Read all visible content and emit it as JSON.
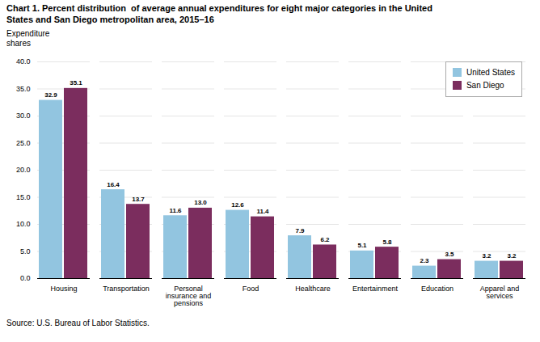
{
  "chart_data": {
    "type": "bar",
    "title": "Chart 1. Percent distribution  of average annual expenditures for eight major categories in the United\nStates and San Diego metropolitan area, 2015–16",
    "y_label": "Expenditure\nshares",
    "source": "Source: U.S. Bureau of Labor Statistics.",
    "categories": [
      "Housing",
      "Transportation",
      "Personal\ninsurance and\npensions",
      "Food",
      "Healthcare",
      "Entertainment",
      "Education",
      "Apparel and\nservices"
    ],
    "series": [
      {
        "name": "United States",
        "color": "#92C5E0",
        "values": [
          32.9,
          16.4,
          11.6,
          12.6,
          7.9,
          5.1,
          2.3,
          3.2
        ],
        "value_labels": [
          "32.9",
          "16.4",
          "11.6",
          "12.6",
          "7.9",
          "5.1",
          "2.3",
          "3.2"
        ]
      },
      {
        "name": "San Diego",
        "color": "#7B2D5E",
        "values": [
          35.1,
          13.7,
          13.0,
          11.4,
          6.2,
          5.8,
          3.5,
          3.2
        ],
        "value_labels": [
          "35.1",
          "13.7",
          "13.0",
          "11.4",
          "6.2",
          "5.8",
          "3.5",
          "3.2"
        ]
      }
    ],
    "ylim": [
      0,
      40
    ],
    "yticks": [
      {
        "value": 0,
        "label": "0.0"
      },
      {
        "value": 5,
        "label": "5.0"
      },
      {
        "value": 10,
        "label": "10.0"
      },
      {
        "value": 15,
        "label": "15.0"
      },
      {
        "value": 20,
        "label": "20.0"
      },
      {
        "value": 25,
        "label": "25.0"
      },
      {
        "value": 30,
        "label": "30.0"
      },
      {
        "value": 35,
        "label": "35.0"
      },
      {
        "value": 40,
        "label": "40.0"
      }
    ],
    "grid": true,
    "legend": "top-right",
    "data_labels": true
  }
}
